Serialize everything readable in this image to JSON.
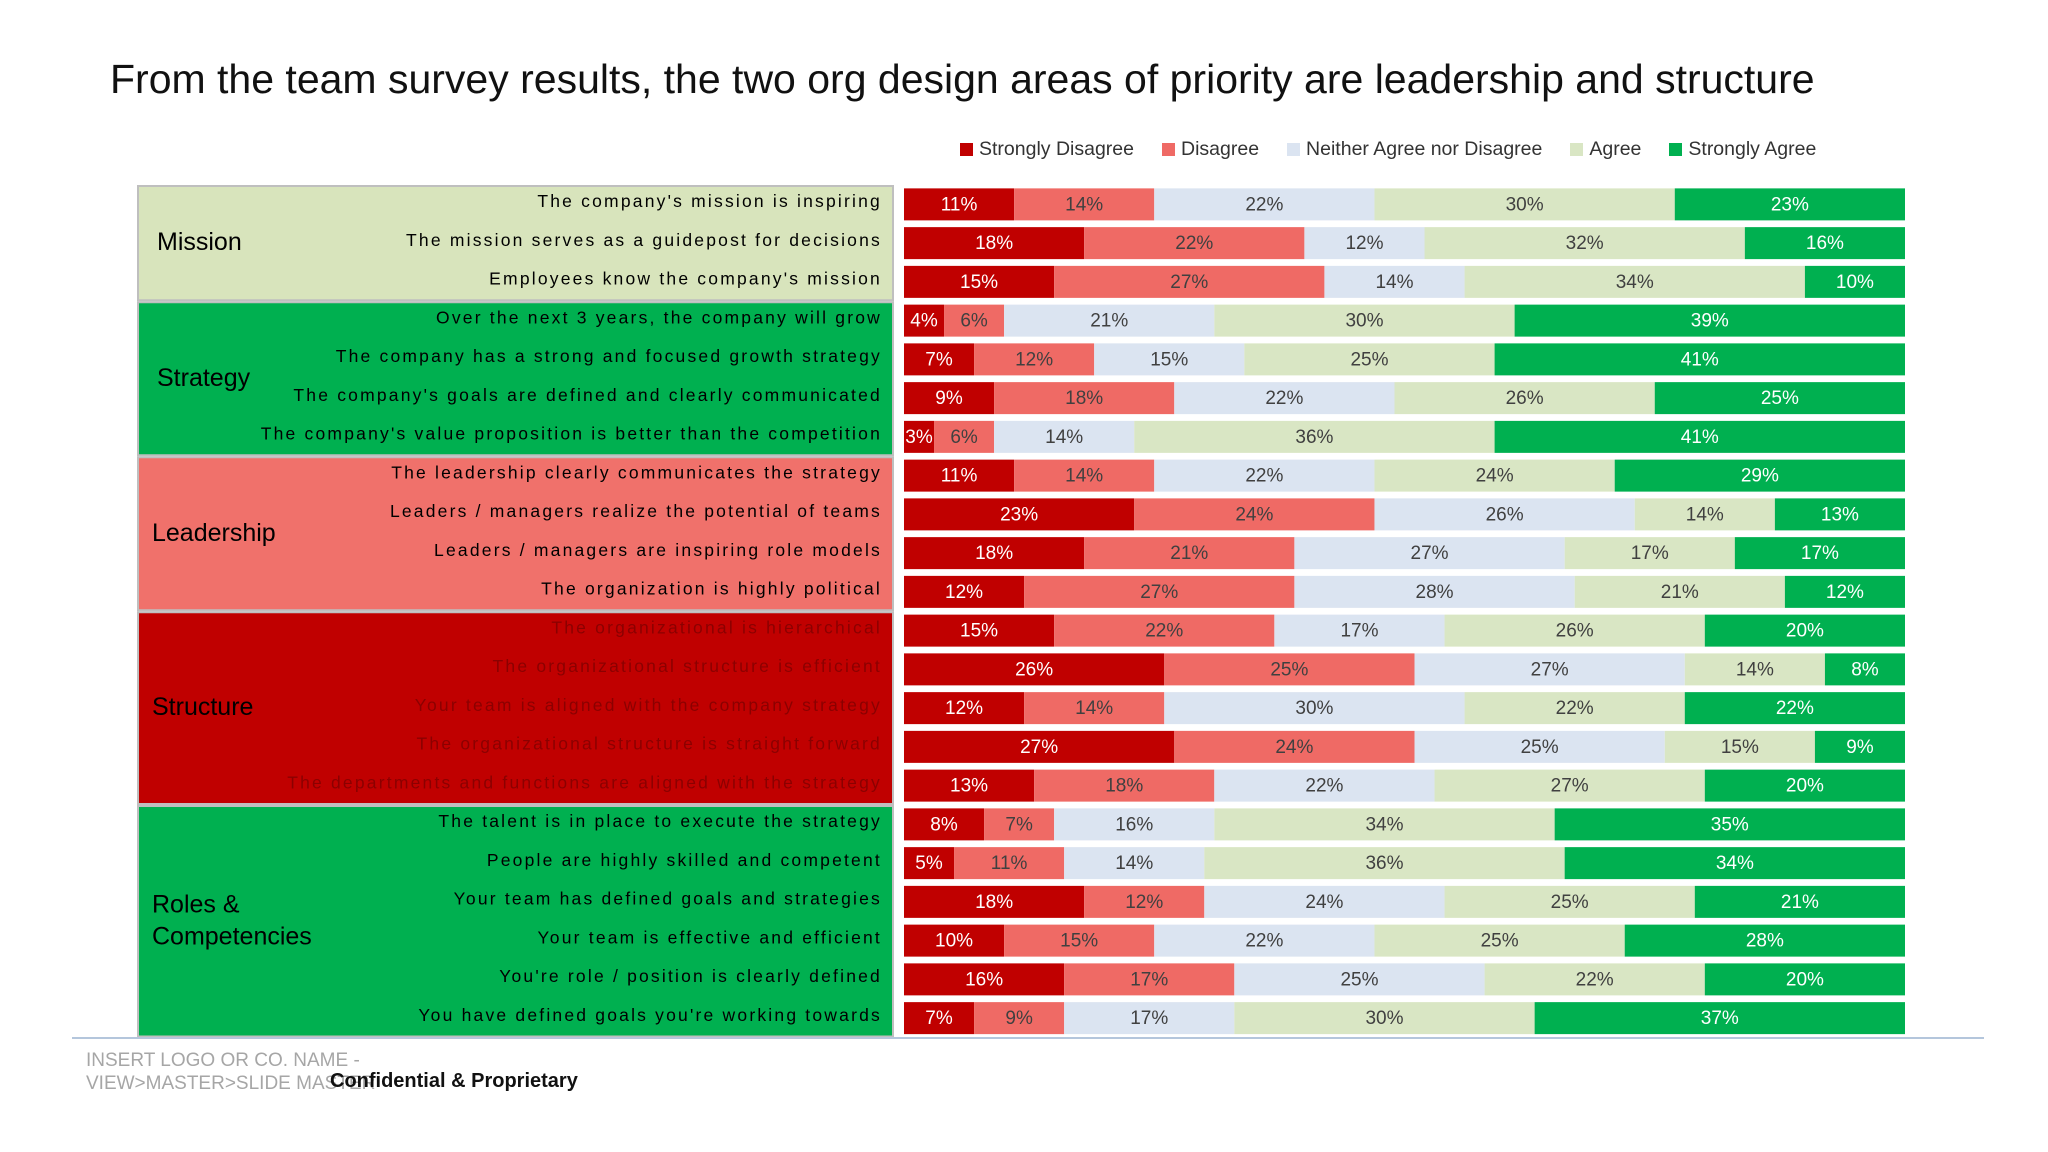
{
  "title": "From the team survey results, the two org design areas of priority are leadership and structure",
  "footer": {
    "placeholder": "INSERT LOGO OR CO. NAME - VIEW>MASTER>SLIDE MASTER",
    "confidential": "Confidential & Proprietary"
  },
  "colors": {
    "strongly_disagree": "#c00000",
    "disagree": "#ef6a65",
    "neither": "#dbe4f1",
    "agree": "#d9e6c4",
    "strongly_agree": "#00b050",
    "group_mission": "#d8e4bc",
    "group_strategy": "#00b050",
    "group_leadership": "#f0716b",
    "group_structure": "#c00000",
    "group_roles": "#00b050",
    "group_border": "#bfbfbf"
  },
  "chart_data": {
    "type": "bar",
    "stacked": true,
    "orientation": "horizontal",
    "percent_suffix": "%",
    "legend_position": "top",
    "series": [
      {
        "name": "Strongly Disagree"
      },
      {
        "name": "Disagree"
      },
      {
        "name": "Neither Agree nor Disagree"
      },
      {
        "name": "Agree"
      },
      {
        "name": "Strongly Agree"
      }
    ],
    "groups": [
      {
        "name": "Mission",
        "rows": [
          {
            "label": "The company's mission is inspiring",
            "values": [
              11,
              14,
              22,
              30,
              23
            ]
          },
          {
            "label": "The mission serves as a guidepost for decisions",
            "values": [
              18,
              22,
              12,
              32,
              16
            ]
          },
          {
            "label": "Employees know the company's mission",
            "values": [
              15,
              27,
              14,
              34,
              10
            ]
          }
        ]
      },
      {
        "name": "Strategy",
        "rows": [
          {
            "label": "Over the next 3 years, the company will grow",
            "values": [
              4,
              6,
              21,
              30,
              39
            ]
          },
          {
            "label": "The company has a strong and focused growth strategy",
            "values": [
              7,
              12,
              15,
              25,
              41
            ]
          },
          {
            "label": "The company's goals are defined and clearly communicated",
            "values": [
              9,
              18,
              22,
              26,
              25
            ]
          },
          {
            "label": "The company's value proposition is better than the competition",
            "values": [
              3,
              6,
              14,
              36,
              41
            ]
          }
        ]
      },
      {
        "name": "Leadership",
        "rows": [
          {
            "label": "The leadership clearly communicates the strategy",
            "values": [
              11,
              14,
              22,
              24,
              29
            ]
          },
          {
            "label": "Leaders / managers realize the potential of teams",
            "values": [
              23,
              24,
              26,
              14,
              13
            ]
          },
          {
            "label": "Leaders / managers are inspiring role models",
            "values": [
              18,
              21,
              27,
              17,
              17
            ]
          },
          {
            "label": "The organization is highly political",
            "values": [
              12,
              27,
              28,
              21,
              12
            ]
          }
        ]
      },
      {
        "name": "Structure",
        "rows": [
          {
            "label": "The organizational is hierarchical",
            "values": [
              15,
              22,
              17,
              26,
              20
            ]
          },
          {
            "label": "The organizational structure is efficient",
            "values": [
              26,
              25,
              27,
              14,
              8
            ]
          },
          {
            "label": "Your team is aligned with the company strategy",
            "values": [
              12,
              14,
              30,
              22,
              22
            ]
          },
          {
            "label": "The organizational structure is straight forward",
            "values": [
              27,
              24,
              25,
              15,
              9
            ]
          },
          {
            "label": "The departments and functions are aligned with the strategy",
            "values": [
              13,
              18,
              22,
              27,
              20
            ]
          }
        ]
      },
      {
        "name": "Roles & Competencies",
        "rows": [
          {
            "label": "The talent is in place to execute the strategy",
            "values": [
              8,
              7,
              16,
              34,
              35
            ]
          },
          {
            "label": "People are highly skilled and competent",
            "values": [
              5,
              11,
              14,
              36,
              34
            ]
          },
          {
            "label": "Your team has defined goals and strategies",
            "values": [
              18,
              12,
              24,
              25,
              21
            ]
          },
          {
            "label": "Your team is effective and efficient",
            "values": [
              10,
              15,
              22,
              25,
              28
            ]
          },
          {
            "label": "You're role / position is clearly defined",
            "values": [
              16,
              17,
              25,
              22,
              20
            ]
          },
          {
            "label": "You have defined goals you're working towards",
            "values": [
              7,
              9,
              17,
              30,
              37
            ]
          }
        ]
      }
    ]
  }
}
